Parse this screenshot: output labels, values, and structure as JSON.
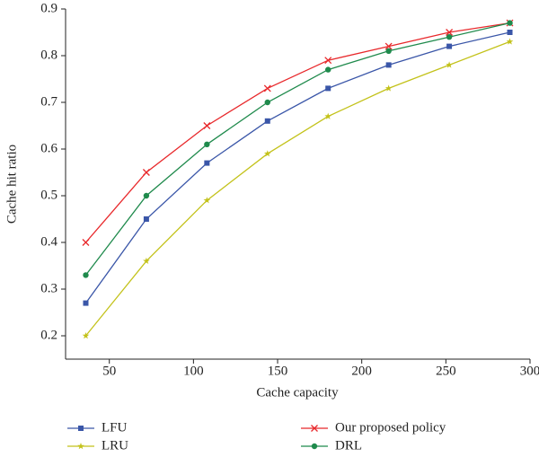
{
  "chart_data": {
    "type": "line",
    "x_label": "Cache capacity",
    "y_label": "Cache hit ratio",
    "x": [
      36,
      72,
      108,
      144,
      180,
      216,
      252,
      288
    ],
    "xlim": [
      24,
      300
    ],
    "xticks": [
      50,
      100,
      150,
      200,
      250,
      300
    ],
    "ylim": [
      0.15,
      0.9
    ],
    "yticks": [
      0.2,
      0.3,
      0.4,
      0.5,
      0.6,
      0.7,
      0.8,
      0.9
    ],
    "series": [
      {
        "name": "LFU",
        "color": "#3a56a8",
        "marker": "square",
        "values": [
          0.27,
          0.45,
          0.57,
          0.66,
          0.73,
          0.78,
          0.82,
          0.85
        ]
      },
      {
        "name": "LRU",
        "color": "#c3c21a",
        "marker": "star",
        "values": [
          0.2,
          0.36,
          0.49,
          0.59,
          0.67,
          0.73,
          0.78,
          0.83
        ]
      },
      {
        "name": "Our proposed policy",
        "color": "#e8282b",
        "marker": "x",
        "values": [
          0.4,
          0.55,
          0.65,
          0.73,
          0.79,
          0.82,
          0.85,
          0.87
        ]
      },
      {
        "name": "DRL",
        "color": "#1f8a4c",
        "marker": "circle",
        "values": [
          0.33,
          0.5,
          0.61,
          0.7,
          0.77,
          0.81,
          0.84,
          0.87
        ]
      }
    ]
  }
}
